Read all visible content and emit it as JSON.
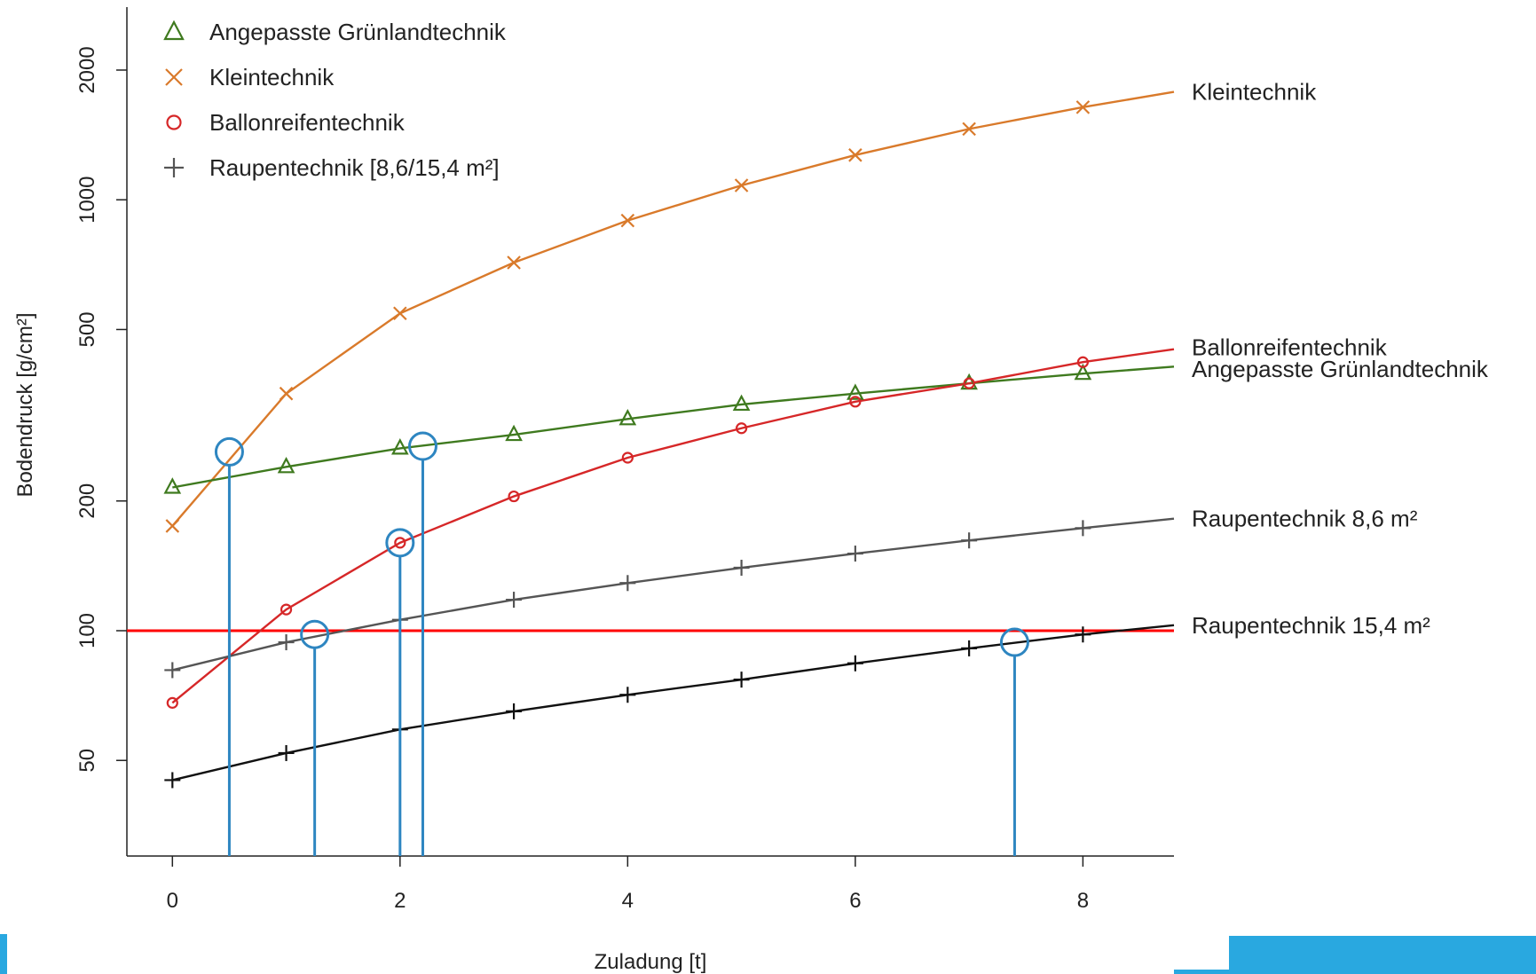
{
  "chart_data": {
    "type": "line",
    "title": "",
    "xlabel": "Zuladung [t]",
    "ylabel": "Bodendruck [g/cm²]",
    "y_scale": "log",
    "xlim": [
      -0.4,
      8.8
    ],
    "ylim": [
      30,
      2800
    ],
    "x_ticks": [
      "0",
      "2",
      "4",
      "6",
      "8"
    ],
    "y_ticks": [
      "50",
      "100",
      "200",
      "500",
      "1000",
      "2000"
    ],
    "x": [
      0,
      1,
      2,
      3,
      4,
      5,
      6,
      7,
      8
    ],
    "series": [
      {
        "name": "Kleintechnik",
        "marker": "x",
        "color": "#d97a2b",
        "values": [
          175,
          355,
          545,
          715,
          895,
          1080,
          1270,
          1460,
          1640
        ],
        "end_value": 1780
      },
      {
        "name": "Angepasste Grünlandtechnik",
        "marker": "triangle",
        "color": "#3f7a1f",
        "values": [
          215,
          240,
          265,
          285,
          310,
          335,
          355,
          375,
          395
        ],
        "end_value": 410
      },
      {
        "name": "Ballonreifentechnik",
        "marker": "circle",
        "color": "#d62728",
        "values": [
          68,
          112,
          160,
          205,
          252,
          295,
          340,
          375,
          420
        ],
        "end_value": 450
      },
      {
        "name": "Raupentechnik 8,6 m²",
        "marker": "plus",
        "color": "#555555",
        "values": [
          81,
          94,
          106,
          118,
          129,
          140,
          151,
          162,
          173
        ],
        "end_value": 182
      },
      {
        "name": "Raupentechnik 15,4 m²",
        "marker": "plus",
        "color": "#111111",
        "values": [
          45,
          52,
          59,
          65,
          71,
          77,
          84,
          91,
          98
        ],
        "end_value": 103
      }
    ],
    "reference_line": {
      "y": 100,
      "color": "#ff0000"
    },
    "highlight_color": "#2e86c1",
    "highlights": [
      {
        "x": 0.5,
        "y": 260
      },
      {
        "x": 1.25,
        "y": 98
      },
      {
        "x": 2.0,
        "y": 160
      },
      {
        "x": 2.2,
        "y": 268
      },
      {
        "x": 7.4,
        "y": 94
      }
    ],
    "legend": {
      "placement": "top-left",
      "items": [
        {
          "marker": "triangle",
          "color": "#3f7a1f",
          "label": "Angepasste Grünlandtechnik"
        },
        {
          "marker": "x",
          "color": "#d97a2b",
          "label": "Kleintechnik"
        },
        {
          "marker": "circle",
          "color": "#d62728",
          "label": "Ballonreifentechnik"
        },
        {
          "marker": "plus",
          "color": "#555555",
          "label": "Raupentechnik [8,6/15,4 m²]"
        }
      ]
    },
    "series_labels": [
      {
        "text": "Kleintechnik",
        "y": 1780
      },
      {
        "text": "Ballonreifentechnik",
        "y": 455
      },
      {
        "text": "Angepasste Grünlandtechnik",
        "y": 405
      },
      {
        "text": "Raupentechnik  8,6 m²",
        "y": 182
      },
      {
        "text": "Raupentechnik  15,4 m²",
        "y": 103
      }
    ],
    "grid": false
  },
  "decor": {
    "accent_color": "#29a8e0"
  }
}
